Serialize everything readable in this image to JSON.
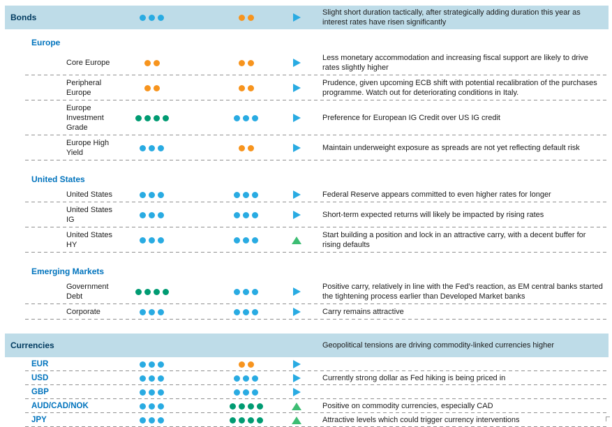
{
  "colors": {
    "band_bg": "#bedce8",
    "navy": "#003a5f",
    "blue_text": "#0073bd",
    "blue": "#29abe2",
    "orange": "#f7941e",
    "green": "#009b72",
    "arrow_green": "#3dbd73",
    "separator": "#909090"
  },
  "sections": [
    {
      "kind": "band",
      "label": "Bonds",
      "view1": {
        "count": 3,
        "color": "blue"
      },
      "view2": {
        "count": 2,
        "color": "orange"
      },
      "trend": {
        "dir": "right",
        "color": "blue"
      },
      "comment": "Slight short duration tactically, after strategically adding duration this year as interest rates have risen significantly"
    },
    {
      "kind": "group",
      "heading": "Europe",
      "rows": [
        {
          "label": "Core Europe",
          "view1": {
            "count": 2,
            "color": "orange"
          },
          "view2": {
            "count": 2,
            "color": "orange"
          },
          "trend": {
            "dir": "right",
            "color": "blue"
          },
          "comment": "Less monetary accommodation and increasing fiscal support are likely to drive rates slightly higher"
        },
        {
          "label": "Peripheral Europe",
          "view1": {
            "count": 2,
            "color": "orange"
          },
          "view2": {
            "count": 2,
            "color": "orange"
          },
          "trend": {
            "dir": "right",
            "color": "blue"
          },
          "comment": "Prudence, given upcoming ECB shift with potential recalibration of the purchases programme. Watch out for deteriorating conditions in Italy."
        },
        {
          "label": "Europe Investment Grade",
          "view1": {
            "count": 4,
            "color": "green"
          },
          "view2": {
            "count": 3,
            "color": "blue"
          },
          "trend": {
            "dir": "right",
            "color": "blue"
          },
          "comment": "Preference for European IG Credit over US IG credit"
        },
        {
          "label": "Europe High Yield",
          "view1": {
            "count": 3,
            "color": "blue"
          },
          "view2": {
            "count": 2,
            "color": "orange"
          },
          "trend": {
            "dir": "right",
            "color": "blue"
          },
          "comment": "Maintain underweight exposure as spreads are not yet reflecting default risk"
        }
      ]
    },
    {
      "kind": "group",
      "heading": "United States",
      "rows": [
        {
          "label": "United States",
          "view1": {
            "count": 3,
            "color": "blue"
          },
          "view2": {
            "count": 3,
            "color": "blue"
          },
          "trend": {
            "dir": "right",
            "color": "blue"
          },
          "comment": "Federal Reserve appears committed to even higher rates for longer"
        },
        {
          "label": "United States IG",
          "view1": {
            "count": 3,
            "color": "blue"
          },
          "view2": {
            "count": 3,
            "color": "blue"
          },
          "trend": {
            "dir": "right",
            "color": "blue"
          },
          "comment": "Short-term expected returns will likely be impacted by rising rates"
        },
        {
          "label": "United States HY",
          "view1": {
            "count": 3,
            "color": "blue"
          },
          "view2": {
            "count": 3,
            "color": "blue"
          },
          "trend": {
            "dir": "up",
            "color": "arrow_green"
          },
          "comment": "Start building a position and lock in an attractive carry, with a decent buffer for rising defaults"
        }
      ]
    },
    {
      "kind": "group",
      "heading": "Emerging Markets",
      "rows": [
        {
          "label": "Government Debt",
          "view1": {
            "count": 4,
            "color": "green"
          },
          "view2": {
            "count": 3,
            "color": "blue"
          },
          "trend": {
            "dir": "right",
            "color": "blue"
          },
          "comment": "Positive carry, relatively in line with the Fed’s reaction, as EM central banks started the tightening process earlier than Developed Market banks"
        },
        {
          "label": "Corporate",
          "view1": {
            "count": 3,
            "color": "blue"
          },
          "view2": {
            "count": 3,
            "color": "blue"
          },
          "trend": {
            "dir": "right",
            "color": "blue"
          },
          "comment": "Carry remains attractive"
        }
      ]
    },
    {
      "kind": "band",
      "label": "Currencies",
      "view1": null,
      "view2": null,
      "trend": null,
      "comment": "Geopolitical tensions are driving commodity-linked currencies higher"
    },
    {
      "kind": "group",
      "heading": null,
      "row_style": "currency",
      "rows": [
        {
          "label": "EUR",
          "view1": {
            "count": 3,
            "color": "blue"
          },
          "view2": {
            "count": 2,
            "color": "orange"
          },
          "trend": {
            "dir": "right",
            "color": "blue"
          },
          "comment": ""
        },
        {
          "label": "USD",
          "view1": {
            "count": 3,
            "color": "blue"
          },
          "view2": {
            "count": 3,
            "color": "blue"
          },
          "trend": {
            "dir": "right",
            "color": "blue"
          },
          "comment": "Currently strong dollar as Fed hiking is being priced in"
        },
        {
          "label": "GBP",
          "view1": {
            "count": 3,
            "color": "blue"
          },
          "view2": {
            "count": 3,
            "color": "blue"
          },
          "trend": {
            "dir": "right",
            "color": "blue"
          },
          "comment": ""
        },
        {
          "label": "AUD/CAD/NOK",
          "view1": {
            "count": 3,
            "color": "blue"
          },
          "view2": {
            "count": 4,
            "color": "green"
          },
          "trend": {
            "dir": "up",
            "color": "arrow_green"
          },
          "comment": "Positive on commodity currencies, especially CAD"
        },
        {
          "label": "JPY",
          "view1": {
            "count": 3,
            "color": "blue"
          },
          "view2": {
            "count": 4,
            "color": "green"
          },
          "trend": {
            "dir": "up",
            "color": "arrow_green"
          },
          "comment": "Attractive levels which could trigger currency interventions"
        }
      ]
    }
  ]
}
